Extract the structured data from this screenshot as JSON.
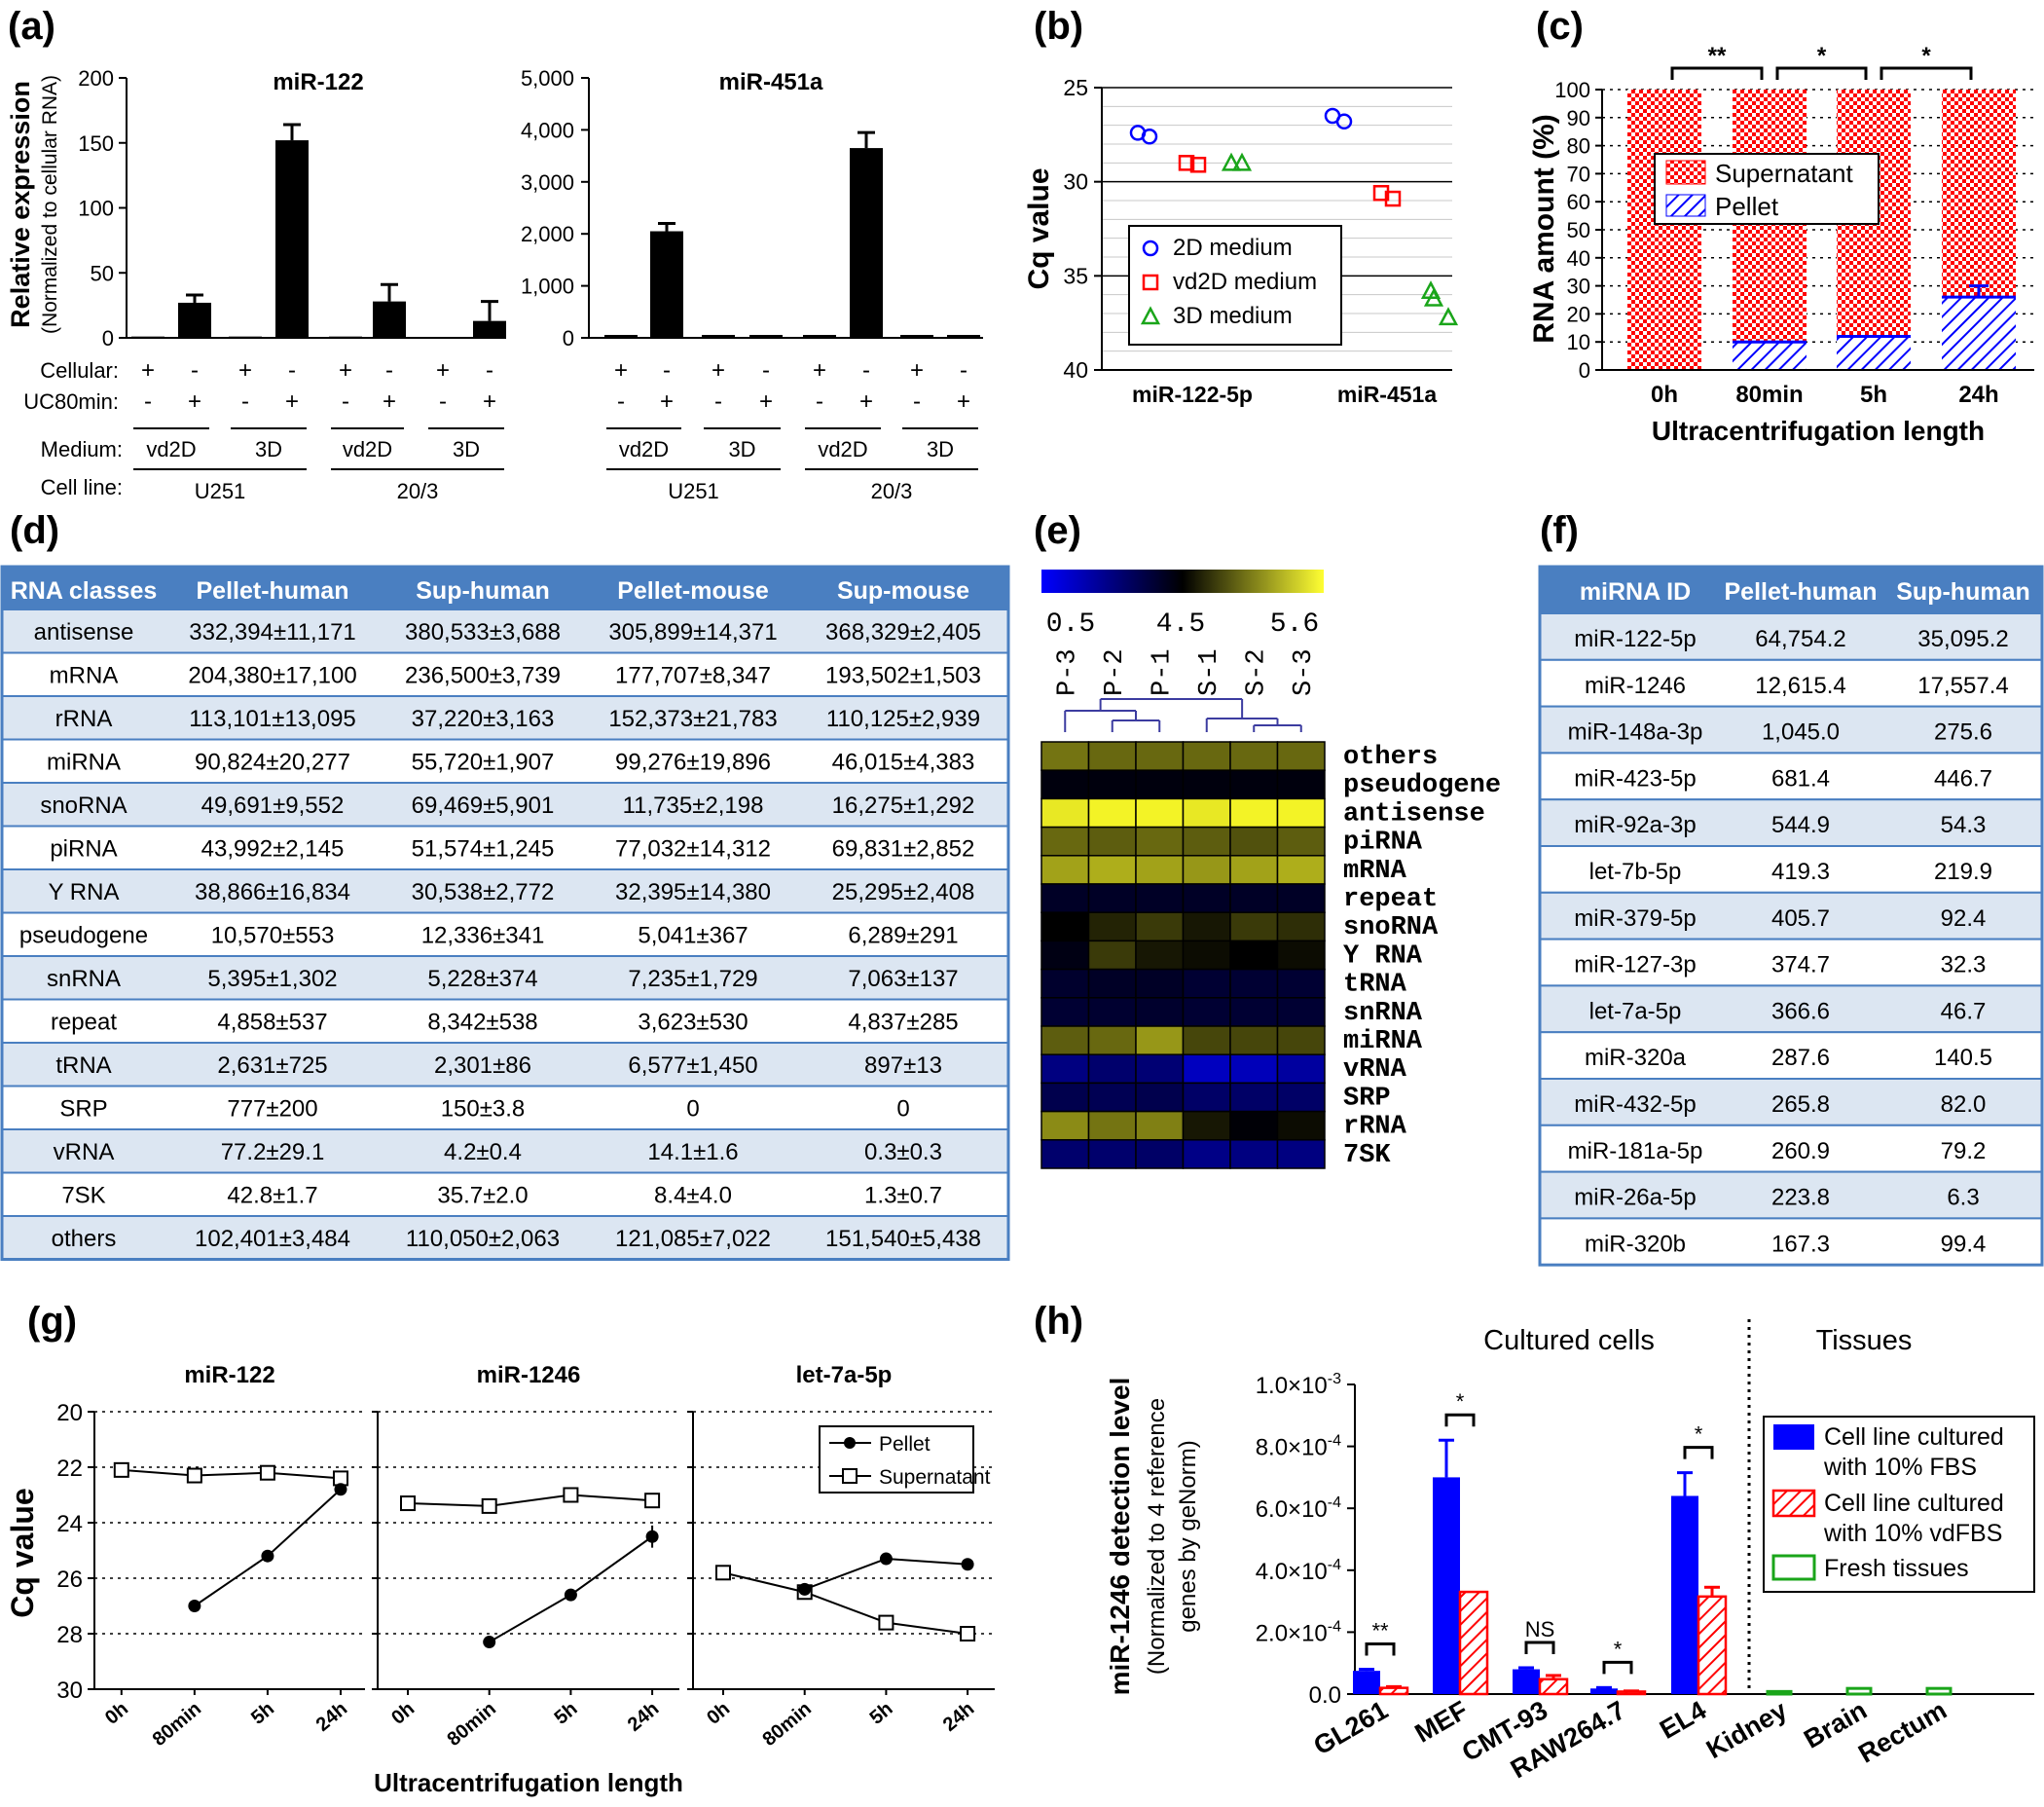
{
  "panel_letters": {
    "a": "(a)",
    "b": "(b)",
    "c": "(c)",
    "d": "(d)",
    "e": "(e)",
    "f": "(f)",
    "g": "(g)",
    "h": "(h)"
  },
  "colors": {
    "blue": "#0000ff",
    "red": "#ff0000",
    "green": "#1aa51a",
    "table_header": "#4a7fc1",
    "table_stripe": "#dce6f2",
    "table_border": "#4a7fc1"
  },
  "panel_a": {
    "ylabel": "Relative expression",
    "ylabel_sub": "(Normalized to cellular RNA)",
    "row_labels": {
      "cellular": "Cellular:",
      "uc80": "UC80min:",
      "medium": "Medium:",
      "cell_line": "Cell line:"
    },
    "plus": "+",
    "minus": "-",
    "cellular_signs": [
      "+",
      "-",
      "+",
      "-",
      "+",
      "-",
      "+",
      "-"
    ],
    "uc_signs": [
      "-",
      "+",
      "-",
      "+",
      "-",
      "+",
      "-",
      "+"
    ],
    "medium_labels": [
      "vd2D",
      "3D",
      "vd2D",
      "3D"
    ],
    "cell_lines": [
      "U251",
      "20/3"
    ]
  },
  "panel_b": {
    "ylabel": "Cq value",
    "legend": [
      {
        "name": "2D medium",
        "color": "#0000ff",
        "marker": "circle"
      },
      {
        "name": "vd2D medium",
        "color": "#ff0000",
        "marker": "square"
      },
      {
        "name": "3D medium",
        "color": "#1aa51a",
        "marker": "triangle"
      }
    ]
  },
  "panel_c": {
    "xlabel": "Ultracentrifugation length",
    "ylabel": "RNA amount (%)",
    "legend": [
      {
        "name": "Supernatant"
      },
      {
        "name": "Pellet"
      }
    ],
    "significance": [
      {
        "from": 0,
        "to": 1,
        "label": "**"
      },
      {
        "from": 1,
        "to": 2,
        "label": "*"
      },
      {
        "from": 2,
        "to": 3,
        "label": "*"
      }
    ]
  },
  "panel_d": {
    "headers": [
      "RNA classes",
      "Pellet-human",
      "Sup-human",
      "Pellet-mouse",
      "Sup-mouse"
    ],
    "rows": [
      [
        "antisense",
        "332,394±11,171",
        "380,533±3,688",
        "305,899±14,371",
        "368,329±2,405"
      ],
      [
        "mRNA",
        "204,380±17,100",
        "236,500±3,739",
        "177,707±8,347",
        "193,502±1,503"
      ],
      [
        "rRNA",
        "113,101±13,095",
        "37,220±3,163",
        "152,373±21,783",
        "110,125±2,939"
      ],
      [
        "miRNA",
        "90,824±20,277",
        "55,720±1,907",
        "99,276±19,896",
        "46,015±4,383"
      ],
      [
        "snoRNA",
        "49,691±9,552",
        "69,469±5,901",
        "11,735±2,198",
        "16,275±1,292"
      ],
      [
        "piRNA",
        "43,992±2,145",
        "51,574±1,245",
        "77,032±14,312",
        "69,831±2,852"
      ],
      [
        "Y RNA",
        "38,866±16,834",
        "30,538±2,772",
        "32,395±14,380",
        "25,295±2,408"
      ],
      [
        "pseudogene",
        "10,570±553",
        "12,336±341",
        "5,041±367",
        "6,289±291"
      ],
      [
        "snRNA",
        "5,395±1,302",
        "5,228±374",
        "7,235±1,729",
        "7,063±137"
      ],
      [
        "repeat",
        "4,858±537",
        "8,342±538",
        "3,623±530",
        "4,837±285"
      ],
      [
        "tRNA",
        "2,631±725",
        "2,301±86",
        "6,577±1,450",
        "897±13"
      ],
      [
        "SRP",
        "777±200",
        "150±3.8",
        "0",
        "0"
      ],
      [
        "vRNA",
        "77.2±29.1",
        "4.2±0.4",
        "14.1±1.6",
        "0.3±0.3"
      ],
      [
        "7SK",
        "42.8±1.7",
        "35.7±2.0",
        "8.4±4.0",
        "1.3±0.7"
      ],
      [
        "others",
        "102,401±3,484",
        "110,050±2,063",
        "121,085±7,022",
        "151,540±5,438"
      ]
    ]
  },
  "panel_e": {
    "scale_labels": [
      "0.5",
      "4.5",
      "5.6"
    ],
    "columns": [
      "P-3",
      "P-2",
      "P-1",
      "S-1",
      "S-2",
      "S-3"
    ],
    "rows": [
      "others",
      "pseudogene",
      "antisense",
      "piRNA",
      "mRNA",
      "repeat",
      "snoRNA",
      "Y RNA",
      "tRNA",
      "snRNA",
      "miRNA",
      "vRNA",
      "SRP",
      "rRNA",
      "7SK"
    ],
    "values": [
      [
        5.0,
        4.95,
        4.95,
        4.95,
        4.95,
        4.95
      ],
      [
        4.3,
        4.3,
        4.3,
        4.3,
        4.3,
        4.3
      ],
      [
        5.5,
        5.55,
        5.55,
        5.5,
        5.55,
        5.55
      ],
      [
        4.95,
        4.9,
        4.95,
        4.9,
        4.85,
        4.9
      ],
      [
        5.2,
        5.25,
        5.2,
        5.15,
        5.2,
        5.25
      ],
      [
        3.9,
        3.9,
        3.9,
        3.9,
        3.9,
        3.9
      ],
      [
        4.5,
        4.65,
        4.75,
        4.6,
        4.75,
        4.7
      ],
      [
        4.2,
        4.75,
        4.6,
        4.55,
        4.5,
        4.55
      ],
      [
        3.8,
        3.9,
        3.9,
        3.7,
        3.7,
        3.7
      ],
      [
        3.7,
        3.75,
        3.8,
        3.7,
        3.7,
        3.7
      ],
      [
        4.9,
        4.95,
        5.15,
        4.8,
        4.8,
        4.8
      ],
      [
        2.5,
        2.8,
        2.7,
        1.5,
        1.6,
        2.0
      ],
      [
        3.3,
        3.2,
        3.3,
        2.9,
        2.9,
        2.9
      ],
      [
        5.1,
        5.0,
        5.05,
        4.6,
        4.4,
        4.55
      ],
      [
        2.8,
        2.8,
        2.9,
        2.4,
        2.5,
        2.5
      ]
    ]
  },
  "panel_f": {
    "headers": [
      "miRNA ID",
      "Pellet-human",
      "Sup-human"
    ],
    "rows": [
      [
        "miR-122-5p",
        "64,754.2",
        "35,095.2"
      ],
      [
        "miR-1246",
        "12,615.4",
        "17,557.4"
      ],
      [
        "miR-148a-3p",
        "1,045.0",
        "275.6"
      ],
      [
        "miR-423-5p",
        "681.4",
        "446.7"
      ],
      [
        "miR-92a-3p",
        "544.9",
        "54.3"
      ],
      [
        "let-7b-5p",
        "419.3",
        "219.9"
      ],
      [
        "miR-379-5p",
        "405.7",
        "92.4"
      ],
      [
        "miR-127-3p",
        "374.7",
        "32.3"
      ],
      [
        "let-7a-5p",
        "366.6",
        "46.7"
      ],
      [
        "miR-320a",
        "287.6",
        "140.5"
      ],
      [
        "miR-432-5p",
        "265.8",
        "82.0"
      ],
      [
        "miR-181a-5p",
        "260.9",
        "79.2"
      ],
      [
        "miR-26a-5p",
        "223.8",
        "6.3"
      ],
      [
        "miR-320b",
        "167.3",
        "99.4"
      ]
    ]
  },
  "panel_g": {
    "ylabel": "Cq value",
    "xlabel": "Ultracentrifugation length",
    "legend": [
      {
        "name": "Pellet"
      },
      {
        "name": "Supernatant"
      }
    ]
  },
  "panel_h": {
    "ylabel": "miR-1246 detection level",
    "ylabel_sub1": "(Normalized to 4 reference",
    "ylabel_sub2": "genes by geNorm)",
    "group_labels": [
      "Cultured cells",
      "Tissues"
    ],
    "legend": [
      {
        "name1": "Cell line cultured",
        "name2": "with 10% FBS"
      },
      {
        "name1": "Cell line cultured",
        "name2": "with 10% vdFBS"
      },
      {
        "name1": "Fresh tissues",
        "name2": ""
      }
    ],
    "significance": [
      "**",
      "*",
      "NS",
      "*",
      "*"
    ]
  },
  "chart_data": [
    {
      "id": "a1",
      "type": "bar",
      "title": "miR-122",
      "ylabel": "Relative expression",
      "ylim": [
        0,
        200
      ],
      "yticks": [
        "0",
        "50",
        "100",
        "150",
        "200"
      ],
      "values": [
        1,
        27,
        1,
        152,
        1,
        28,
        0.5,
        13
      ],
      "errors": [
        0,
        6,
        0,
        12,
        0,
        13,
        0,
        15
      ]
    },
    {
      "id": "a2",
      "type": "bar",
      "title": "miR-451a",
      "ylim": [
        0,
        5000
      ],
      "yticks": [
        "0",
        "1,000",
        "2,000",
        "3,000",
        "4,000",
        "5,000"
      ],
      "values": [
        0,
        2050,
        0,
        0,
        0,
        3650,
        0,
        0
      ],
      "errors": [
        0,
        150,
        0,
        0,
        0,
        300,
        0,
        0
      ]
    },
    {
      "id": "b",
      "type": "scatter",
      "ylabel": "Cq value",
      "ylim": [
        40,
        25
      ],
      "yticks": [
        "25",
        "30",
        "35",
        "40"
      ],
      "categories": [
        "miR-122-5p",
        "miR-451a"
      ],
      "series": [
        {
          "name": "2D medium",
          "points": [
            [
              0,
              27.4
            ],
            [
              0,
              27.6
            ],
            [
              1,
              26.5
            ],
            [
              1,
              26.8
            ]
          ]
        },
        {
          "name": "vd2D medium",
          "points": [
            [
              0,
              29.0
            ],
            [
              0,
              29.1
            ],
            [
              1,
              30.6
            ],
            [
              1,
              30.9
            ]
          ]
        },
        {
          "name": "3D medium",
          "points": [
            [
              0,
              29.0
            ],
            [
              0,
              29.0
            ],
            [
              1,
              35.8
            ],
            [
              1,
              36.2
            ],
            [
              1,
              37.2
            ]
          ]
        }
      ]
    },
    {
      "id": "c",
      "type": "bar",
      "xlabel": "Ultracentrifugation length",
      "ylabel": "RNA amount (%)",
      "categories": [
        "0h",
        "80min",
        "5h",
        "24h"
      ],
      "ylim": [
        0,
        100
      ],
      "yticks": [
        "0",
        "10",
        "20",
        "30",
        "40",
        "50",
        "60",
        "70",
        "80",
        "90",
        "100"
      ],
      "series": [
        {
          "name": "Pellet",
          "values": [
            0,
            10,
            12,
            26
          ],
          "errors": [
            0,
            0.5,
            0.6,
            4
          ]
        },
        {
          "name": "Supernatant",
          "values": [
            100,
            90,
            88,
            74
          ]
        }
      ]
    },
    {
      "id": "g1",
      "type": "line",
      "title": "miR-122",
      "ylim": [
        30,
        20
      ],
      "yticks": [
        "20",
        "22",
        "24",
        "26",
        "28",
        "30"
      ],
      "categories": [
        "0h",
        "80min",
        "5h",
        "24h"
      ],
      "series": [
        {
          "name": "Pellet",
          "values": [
            null,
            27.0,
            25.2,
            22.8
          ]
        },
        {
          "name": "Supernatant",
          "values": [
            22.1,
            22.3,
            22.2,
            22.4
          ]
        }
      ]
    },
    {
      "id": "g2",
      "type": "line",
      "title": "miR-1246",
      "ylim": [
        30,
        20
      ],
      "categories": [
        "0h",
        "80min",
        "5h",
        "24h"
      ],
      "series": [
        {
          "name": "Pellet",
          "values": [
            null,
            28.3,
            26.6,
            24.5
          ]
        },
        {
          "name": "Supernatant",
          "values": [
            23.3,
            23.4,
            23.0,
            23.2
          ]
        }
      ]
    },
    {
      "id": "g3",
      "type": "line",
      "title": "let-7a-5p",
      "ylim": [
        30,
        20
      ],
      "categories": [
        "0h",
        "80min",
        "5h",
        "24h"
      ],
      "series": [
        {
          "name": "Pellet",
          "values": [
            null,
            26.4,
            25.3,
            25.5
          ]
        },
        {
          "name": "Supernatant",
          "values": [
            25.8,
            26.5,
            27.6,
            28.0
          ]
        }
      ]
    },
    {
      "id": "h",
      "type": "bar",
      "ylabel": "miR-1246 detection level",
      "ylim": [
        0,
        0.001
      ],
      "yticks": [
        "0.0",
        "2.0×10",
        "4.0×10",
        "6.0×10",
        "8.0×10",
        "1.0×10"
      ],
      "ytick_exps": [
        "",
        "-4",
        "-4",
        "-4",
        "-4",
        "-3"
      ],
      "categories": [
        "GL261",
        "MEF",
        "CMT-93",
        "RAW264.7",
        "EL4",
        "Kidney",
        "Brain",
        "Rectum"
      ],
      "series": [
        {
          "name": "Cell line cultured with 10% FBS",
          "values": [
            7.5e-05,
            0.0007,
            8e-05,
            1.8e-05,
            0.00064,
            null,
            null,
            null
          ],
          "errors": [
            5e-06,
            0.00012,
            5e-06,
            3e-06,
            7.5e-05,
            null,
            null,
            null
          ]
        },
        {
          "name": "Cell line cultured with 10% vdFBS",
          "values": [
            2e-05,
            0.00033,
            4.8e-05,
            8e-06,
            0.000315,
            null,
            null,
            null
          ],
          "errors": [
            4e-06,
            0,
            1.2e-05,
            2e-06,
            3e-05,
            null,
            null,
            null
          ]
        },
        {
          "name": "Fresh tissues",
          "values": [
            null,
            null,
            null,
            null,
            null,
            2e-06,
            1.2e-05,
            1.2e-05
          ]
        }
      ]
    }
  ]
}
